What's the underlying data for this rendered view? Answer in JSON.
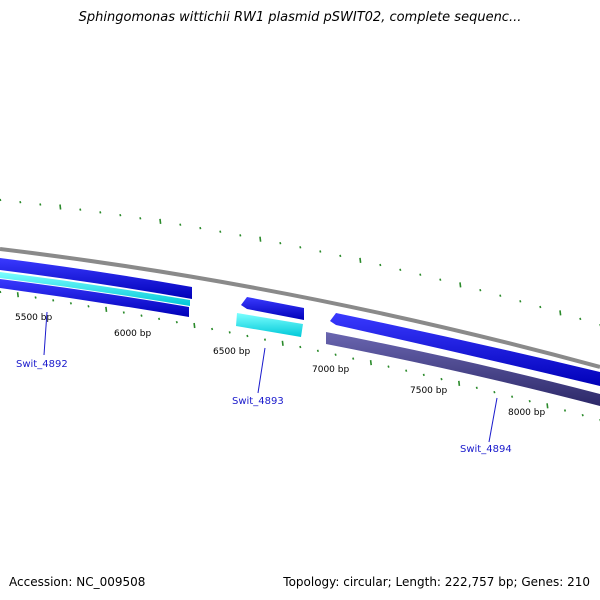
{
  "title": "Sphingomonas wittichii RW1 plasmid pSWIT02, complete sequenc...",
  "footer": {
    "accession": "Accession: NC_009508",
    "summary": "Topology: circular; Length: 222,757 bp; Genes: 210"
  },
  "bp_ticks": [
    {
      "label": "5500 bp"
    },
    {
      "label": "6000 bp"
    },
    {
      "label": "6500 bp"
    },
    {
      "label": "7000 bp"
    },
    {
      "label": "7500 bp"
    },
    {
      "label": "8000 bp"
    }
  ],
  "genes": [
    {
      "name": "Swit_4892"
    },
    {
      "name": "Swit_4893"
    },
    {
      "name": "Swit_4894"
    }
  ],
  "colors": {
    "backbone": "#8c8c8c",
    "cds": "#1010e0",
    "cds_light": "#00e8f0",
    "gene_dark": "#4a4690",
    "tick": "#2a8a2a",
    "gene_label": "#1a1acc"
  }
}
